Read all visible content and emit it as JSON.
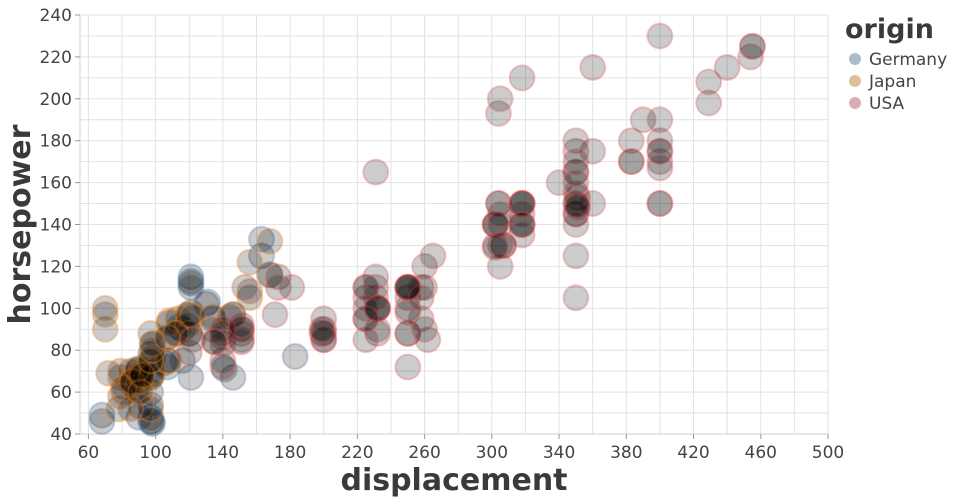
{
  "chart_data": {
    "type": "scatter",
    "xlabel": "displacement",
    "ylabel": "horsepower",
    "xlim": [
      55,
      500
    ],
    "ylim": [
      40,
      240
    ],
    "xticks": [
      60,
      100,
      140,
      180,
      220,
      260,
      300,
      340,
      380,
      420,
      460,
      500
    ],
    "yticks": [
      40,
      60,
      80,
      100,
      120,
      140,
      160,
      180,
      200,
      220,
      240
    ],
    "grid": true,
    "legend": {
      "title": "origin",
      "placement": "top-right",
      "entries": [
        {
          "name": "Germany",
          "color": "#9fb0c4"
        },
        {
          "name": "Japan",
          "color": "#d9b48a"
        },
        {
          "name": "USA",
          "color": "#d3a0a5"
        }
      ]
    },
    "colors": {
      "Germany": "#4c78a8",
      "Japan": "#f58518",
      "USA": "#e45756",
      "fill": "#000000"
    },
    "series": [
      {
        "name": "Germany",
        "points": [
          [
            68,
            49
          ],
          [
            68,
            46
          ],
          [
            90,
            48
          ],
          [
            97,
            46
          ],
          [
            97,
            48
          ],
          [
            98,
            46
          ],
          [
            98,
            45
          ],
          [
            90,
            70
          ],
          [
            90,
            71
          ],
          [
            97,
            60
          ],
          [
            97,
            54
          ],
          [
            97,
            67
          ],
          [
            97,
            78
          ],
          [
            98,
            76
          ],
          [
            98,
            83
          ],
          [
            105,
            74
          ],
          [
            107,
            72
          ],
          [
            121,
            115
          ],
          [
            121,
            113
          ],
          [
            121,
            112
          ],
          [
            121,
            110
          ],
          [
            121,
            98
          ],
          [
            121,
            67
          ],
          [
            116,
            75
          ],
          [
            116,
            90
          ],
          [
            114,
            91
          ],
          [
            120,
            88
          ],
          [
            130,
            102
          ],
          [
            131,
            103
          ],
          [
            134,
            95
          ],
          [
            146,
            67
          ],
          [
            141,
            71
          ],
          [
            163,
            125
          ],
          [
            163,
            133
          ],
          [
            168,
            116
          ],
          [
            183,
            77
          ],
          [
            146,
            97
          ]
        ]
      },
      {
        "name": "Japan",
        "points": [
          [
            70,
            90
          ],
          [
            70,
            97
          ],
          [
            70,
            100
          ],
          [
            72,
            69
          ],
          [
            78,
            52
          ],
          [
            79,
            67
          ],
          [
            79,
            70
          ],
          [
            81,
            60
          ],
          [
            85,
            65
          ],
          [
            85,
            70
          ],
          [
            86,
            65
          ],
          [
            86,
            64
          ],
          [
            89,
            60
          ],
          [
            89,
            62
          ],
          [
            90,
            65
          ],
          [
            91,
            53
          ],
          [
            91,
            67
          ],
          [
            91,
            68
          ],
          [
            91,
            69
          ],
          [
            97,
            88
          ],
          [
            97,
            52
          ],
          [
            97,
            67
          ],
          [
            97,
            75
          ],
          [
            98,
            70
          ],
          [
            98,
            68
          ],
          [
            107,
            75
          ],
          [
            107,
            86
          ],
          [
            108,
            75
          ],
          [
            108,
            94
          ],
          [
            108,
            93
          ],
          [
            112,
            88
          ],
          [
            113,
            95
          ],
          [
            119,
            97
          ],
          [
            119,
            92
          ],
          [
            120,
            88
          ],
          [
            120,
            97
          ],
          [
            122,
            96
          ],
          [
            134,
            96
          ],
          [
            134,
            90
          ],
          [
            144,
            96
          ],
          [
            146,
            97
          ],
          [
            156,
            105
          ],
          [
            156,
            108
          ],
          [
            156,
            122
          ],
          [
            168,
            132
          ],
          [
            168,
            116
          ],
          [
            79,
            58
          ],
          [
            81,
            62
          ],
          [
            85,
            52
          ],
          [
            86,
            65
          ],
          [
            89,
            71
          ],
          [
            91,
            60
          ],
          [
            92,
            68
          ],
          [
            97,
            75
          ],
          [
            98,
            80
          ],
          [
            98,
            83
          ],
          [
            112,
            88
          ],
          [
            107,
            86
          ]
        ]
      },
      {
        "name": "USA",
        "points": [
          [
            307,
            130
          ],
          [
            350,
            165
          ],
          [
            318,
            150
          ],
          [
            304,
            150
          ],
          [
            302,
            140
          ],
          [
            429,
            198
          ],
          [
            454,
            220
          ],
          [
            440,
            215
          ],
          [
            455,
            225
          ],
          [
            390,
            190
          ],
          [
            383,
            170
          ],
          [
            340,
            160
          ],
          [
            400,
            150
          ],
          [
            455,
            225
          ],
          [
            232,
            88
          ],
          [
            250,
            100
          ],
          [
            250,
            105
          ],
          [
            232,
            100
          ],
          [
            199,
            88
          ],
          [
            200,
            85
          ],
          [
            225,
            105
          ],
          [
            250,
            88
          ],
          [
            250,
            72
          ],
          [
            232,
            100
          ],
          [
            350,
            165
          ],
          [
            304,
            150
          ],
          [
            302,
            140
          ],
          [
            350,
            175
          ],
          [
            318,
            150
          ],
          [
            400,
            150
          ],
          [
            400,
            170
          ],
          [
            400,
            175
          ],
          [
            400,
            180
          ],
          [
            360,
            175
          ],
          [
            360,
            215
          ],
          [
            400,
            230
          ],
          [
            429,
            208
          ],
          [
            351,
            153
          ],
          [
            318,
            140
          ],
          [
            307,
            130
          ],
          [
            383,
            180
          ],
          [
            304,
            193
          ],
          [
            305,
            200
          ],
          [
            360,
            150
          ],
          [
            318,
            145
          ],
          [
            350,
            145
          ],
          [
            400,
            190
          ],
          [
            302,
            140
          ],
          [
            318,
            150
          ],
          [
            225,
            110
          ],
          [
            232,
            90
          ],
          [
            250,
            88
          ],
          [
            258,
            110
          ],
          [
            232,
            100
          ],
          [
            200,
            90
          ],
          [
            140,
            72
          ],
          [
            140,
            75
          ],
          [
            140,
            83
          ],
          [
            140,
            86
          ],
          [
            151,
            90
          ],
          [
            151,
            88
          ],
          [
            151,
            85
          ],
          [
            151,
            84
          ],
          [
            173,
            115
          ],
          [
            171,
            97
          ],
          [
            260,
            110
          ],
          [
            250,
            110
          ],
          [
            258,
            95
          ],
          [
            225,
            95
          ],
          [
            231,
            105
          ],
          [
            231,
            110
          ],
          [
            262,
            85
          ],
          [
            318,
            135
          ],
          [
            318,
            140
          ],
          [
            302,
            130
          ],
          [
            350,
            145
          ],
          [
            350,
            150
          ],
          [
            350,
            155
          ],
          [
            305,
            145
          ],
          [
            305,
            140
          ],
          [
            260,
            90
          ],
          [
            260,
            120
          ],
          [
            265,
            125
          ],
          [
            250,
            110
          ],
          [
            231,
            115
          ],
          [
            231,
            165
          ],
          [
            225,
            85
          ],
          [
            225,
            100
          ],
          [
            225,
            110
          ],
          [
            200,
            95
          ],
          [
            200,
            85
          ],
          [
            200,
            88
          ],
          [
            199,
            90
          ],
          [
            250,
            98
          ],
          [
            250,
            110
          ],
          [
            350,
            180
          ],
          [
            350,
            170
          ],
          [
            350,
            160
          ],
          [
            350,
            150
          ],
          [
            350,
            125
          ],
          [
            305,
            130
          ],
          [
            305,
            120
          ],
          [
            302,
            129
          ],
          [
            318,
            150
          ],
          [
            120,
            79
          ],
          [
            122,
            85
          ],
          [
            140,
            88
          ],
          [
            151,
            90
          ],
          [
            153,
            110
          ],
          [
            140,
            90
          ],
          [
            135,
            84
          ],
          [
            135,
            84
          ],
          [
            173,
            110
          ],
          [
            225,
            95
          ],
          [
            232,
            100
          ],
          [
            250,
            110
          ],
          [
            258,
            105
          ],
          [
            350,
            105
          ],
          [
            350,
            140
          ],
          [
            351,
            148
          ],
          [
            318,
            140
          ],
          [
            400,
            167
          ],
          [
            400,
            175
          ],
          [
            318,
            210
          ],
          [
            151,
            92
          ],
          [
            181,
            110
          ],
          [
            250,
            110
          ],
          [
            351,
            149
          ],
          [
            383,
            170
          ]
        ]
      }
    ]
  }
}
